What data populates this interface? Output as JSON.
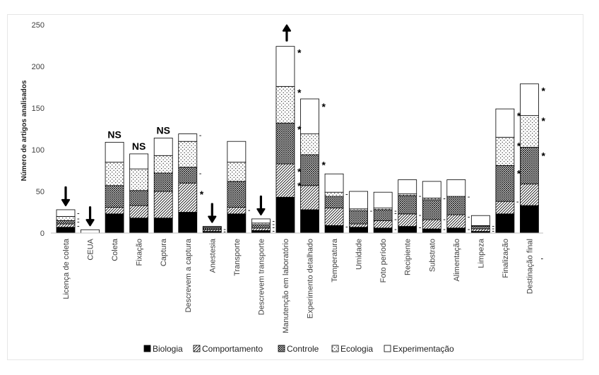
{
  "chart_data": {
    "type": "bar",
    "stacked": true,
    "title": "",
    "xlabel": "",
    "ylabel": "Número de artigos analisados",
    "ylim": [
      0,
      250
    ],
    "yticks": [
      0,
      50,
      100,
      150,
      200,
      250
    ],
    "legend_position": "bottom",
    "categories": [
      "Licença de coleta",
      "CEUA",
      "Coleta",
      "Fixação",
      "Captura",
      "Descrevem a captura",
      "Anestesia",
      "Transporte",
      "Descrevem transporte",
      "Manutenção em laboratório",
      "Experimento detalhado",
      "Temperatura",
      "Umidade",
      "Foto período",
      "Recipiente",
      "Substrato",
      "Alimentação",
      "Limpeza",
      "Finalização",
      "Destinação final"
    ],
    "series": [
      {
        "name": "Biologia",
        "pattern": "solid",
        "values": [
          7,
          0,
          23,
          18,
          18,
          25,
          2,
          23,
          3,
          43,
          28,
          9,
          7,
          6,
          8,
          5,
          6,
          2,
          23,
          33
        ]
      },
      {
        "name": "Comportamento",
        "pattern": "hatch",
        "values": [
          4,
          0,
          8,
          15,
          32,
          35,
          2,
          8,
          3,
          40,
          29,
          21,
          4,
          9,
          15,
          11,
          16,
          3,
          15,
          26
        ]
      },
      {
        "name": "Controle",
        "pattern": "dense",
        "values": [
          4,
          0,
          26,
          18,
          22,
          19,
          2,
          31,
          4,
          49,
          37,
          14,
          16,
          13,
          22,
          24,
          22,
          3,
          43,
          44
        ]
      },
      {
        "name": "Ecologia",
        "pattern": "dots",
        "values": [
          5,
          0,
          28,
          26,
          21,
          31,
          1,
          23,
          2,
          44,
          25,
          5,
          2,
          2,
          2,
          2,
          0,
          1,
          34,
          38
        ]
      },
      {
        "name": "Experimentação",
        "pattern": "blank",
        "values": [
          8,
          4,
          24,
          18,
          21,
          9,
          1,
          25,
          5,
          48,
          42,
          22,
          21,
          19,
          17,
          20,
          20,
          12,
          34,
          38
        ]
      }
    ],
    "annotations": {
      "arrow_down": [
        0,
        1,
        6,
        8
      ],
      "arrow_up": [
        9
      ],
      "ns": [
        2,
        3,
        4
      ],
      "asterisk": [
        {
          "bar": 5,
          "value": 50
        },
        {
          "bar": 9,
          "value": 220
        },
        {
          "bar": 9,
          "value": 172
        },
        {
          "bar": 9,
          "value": 128
        },
        {
          "bar": 9,
          "value": 77
        },
        {
          "bar": 9,
          "value": 60
        },
        {
          "bar": 10,
          "value": 155
        },
        {
          "bar": 10,
          "value": 85
        },
        {
          "bar": 18,
          "value": 144
        },
        {
          "bar": 18,
          "value": 108
        },
        {
          "bar": 18,
          "value": 75
        },
        {
          "bar": 19,
          "value": 174
        },
        {
          "bar": 19,
          "value": 138
        },
        {
          "bar": 19,
          "value": 96
        }
      ],
      "dash": [
        {
          "bar": 0,
          "value": 24
        },
        {
          "bar": 0,
          "value": 18
        },
        {
          "bar": 0,
          "value": 14
        },
        {
          "bar": 0,
          "value": 9
        },
        {
          "bar": 1,
          "value": 1
        },
        {
          "bar": 5,
          "value": 118
        },
        {
          "bar": 5,
          "value": 72
        },
        {
          "bar": 6,
          "value": 5
        },
        {
          "bar": 6,
          "value": 2
        },
        {
          "bar": 7,
          "value": 28
        },
        {
          "bar": 8,
          "value": 15
        },
        {
          "bar": 8,
          "value": 11
        },
        {
          "bar": 8,
          "value": 7
        },
        {
          "bar": 8,
          "value": 3
        },
        {
          "bar": 11,
          "value": 47
        },
        {
          "bar": 11,
          "value": 8
        },
        {
          "bar": 12,
          "value": 27
        },
        {
          "bar": 13,
          "value": 27
        },
        {
          "bar": 13,
          "value": 24
        },
        {
          "bar": 13,
          "value": 17
        },
        {
          "bar": 13,
          "value": 5
        },
        {
          "bar": 14,
          "value": 45
        },
        {
          "bar": 14,
          "value": 22
        },
        {
          "bar": 14,
          "value": 7
        },
        {
          "bar": 15,
          "value": 42
        },
        {
          "bar": 15,
          "value": 17
        },
        {
          "bar": 15,
          "value": 5
        },
        {
          "bar": 16,
          "value": 44
        },
        {
          "bar": 16,
          "value": 20
        },
        {
          "bar": 16,
          "value": 5
        },
        {
          "bar": 17,
          "value": 9
        },
        {
          "bar": 17,
          "value": 6
        },
        {
          "bar": 17,
          "value": 3
        },
        {
          "bar": 18,
          "value": 38
        },
        {
          "bar": 19,
          "value": -30
        }
      ],
      "ns_label": "NS",
      "asterisk_label": "*",
      "dash_label": "-"
    }
  }
}
